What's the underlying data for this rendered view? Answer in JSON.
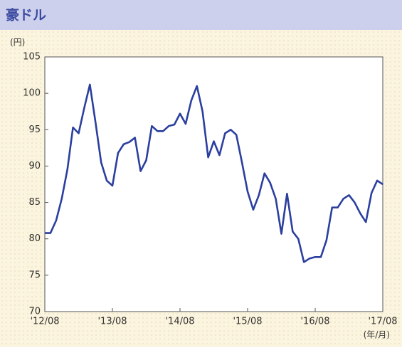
{
  "chart_data": {
    "type": "line",
    "title": "豪ドル",
    "y_unit": "(円)",
    "x_unit": "(年/月)",
    "categories": [
      "'12/08",
      null,
      null,
      null,
      null,
      null,
      null,
      null,
      null,
      null,
      null,
      null,
      "'13/08",
      null,
      null,
      null,
      null,
      null,
      null,
      null,
      null,
      null,
      null,
      null,
      "'14/08",
      null,
      null,
      null,
      null,
      null,
      null,
      null,
      null,
      null,
      null,
      null,
      "'15/08",
      null,
      null,
      null,
      null,
      null,
      null,
      null,
      null,
      null,
      null,
      null,
      "'16/08",
      null,
      null,
      null,
      null,
      null,
      null,
      null,
      null,
      null,
      null,
      null,
      "'17/08"
    ],
    "series": [
      {
        "color": "#2b3f9e",
        "values": [
          80.8,
          80.8,
          82.5,
          85.5,
          89.5,
          95.3,
          94.5,
          98,
          101.2,
          96,
          90.5,
          88,
          87.3,
          91.8,
          93,
          93.3,
          93.9,
          89.3,
          90.8,
          95.5,
          94.8,
          94.8,
          95.5,
          95.7,
          97.2,
          95.8,
          99,
          101,
          97.5,
          91.2,
          93.4,
          91.5,
          94.5,
          95,
          94.3,
          90.5,
          86.5,
          84,
          86,
          89,
          87.7,
          85.5,
          80.7,
          86.2,
          81,
          80,
          76.8,
          77.3,
          77.5,
          77.5,
          79.8,
          84.3,
          84.3,
          85.5,
          86,
          85,
          83.5,
          82.3,
          86.3,
          88,
          87.5
        ]
      }
    ],
    "ylim": [
      70,
      105
    ],
    "yticks": [
      70,
      75,
      80,
      85,
      90,
      95,
      100,
      105
    ],
    "grid": false
  }
}
